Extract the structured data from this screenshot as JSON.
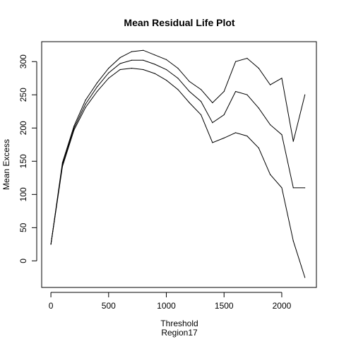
{
  "chart_data": {
    "type": "line",
    "title": "Mean Residual Life Plot",
    "xlabel": "Threshold",
    "xsublabel": "Region17",
    "ylabel": "Mean Excess",
    "xlim": [
      -80,
      2300
    ],
    "ylim": [
      -40,
      330
    ],
    "xticks": [
      0,
      500,
      1000,
      1500,
      2000
    ],
    "yticks": [
      0,
      50,
      100,
      150,
      200,
      250,
      300
    ],
    "grid": false,
    "legend": "none",
    "x": [
      0,
      100,
      200,
      300,
      400,
      500,
      600,
      700,
      800,
      900,
      1000,
      1100,
      1200,
      1300,
      1400,
      1500,
      1600,
      1700,
      1800,
      1900,
      2000,
      2100,
      2200
    ],
    "series": [
      {
        "role": "upper-ci",
        "values": [
          25,
          148,
          203,
          242,
          268,
          290,
          306,
          315,
          317,
          310,
          303,
          290,
          270,
          258,
          238,
          255,
          300,
          305,
          290,
          265,
          275,
          180,
          250
        ]
      },
      {
        "role": "estimate",
        "values": [
          25,
          145,
          200,
          236,
          262,
          283,
          297,
          302,
          302,
          296,
          288,
          275,
          255,
          240,
          208,
          220,
          255,
          250,
          230,
          205,
          190,
          110,
          110
        ]
      },
      {
        "role": "lower-ci",
        "values": [
          25,
          142,
          197,
          231,
          255,
          275,
          288,
          290,
          288,
          282,
          272,
          258,
          238,
          220,
          178,
          185,
          193,
          188,
          170,
          130,
          110,
          30,
          -25
        ]
      }
    ]
  }
}
